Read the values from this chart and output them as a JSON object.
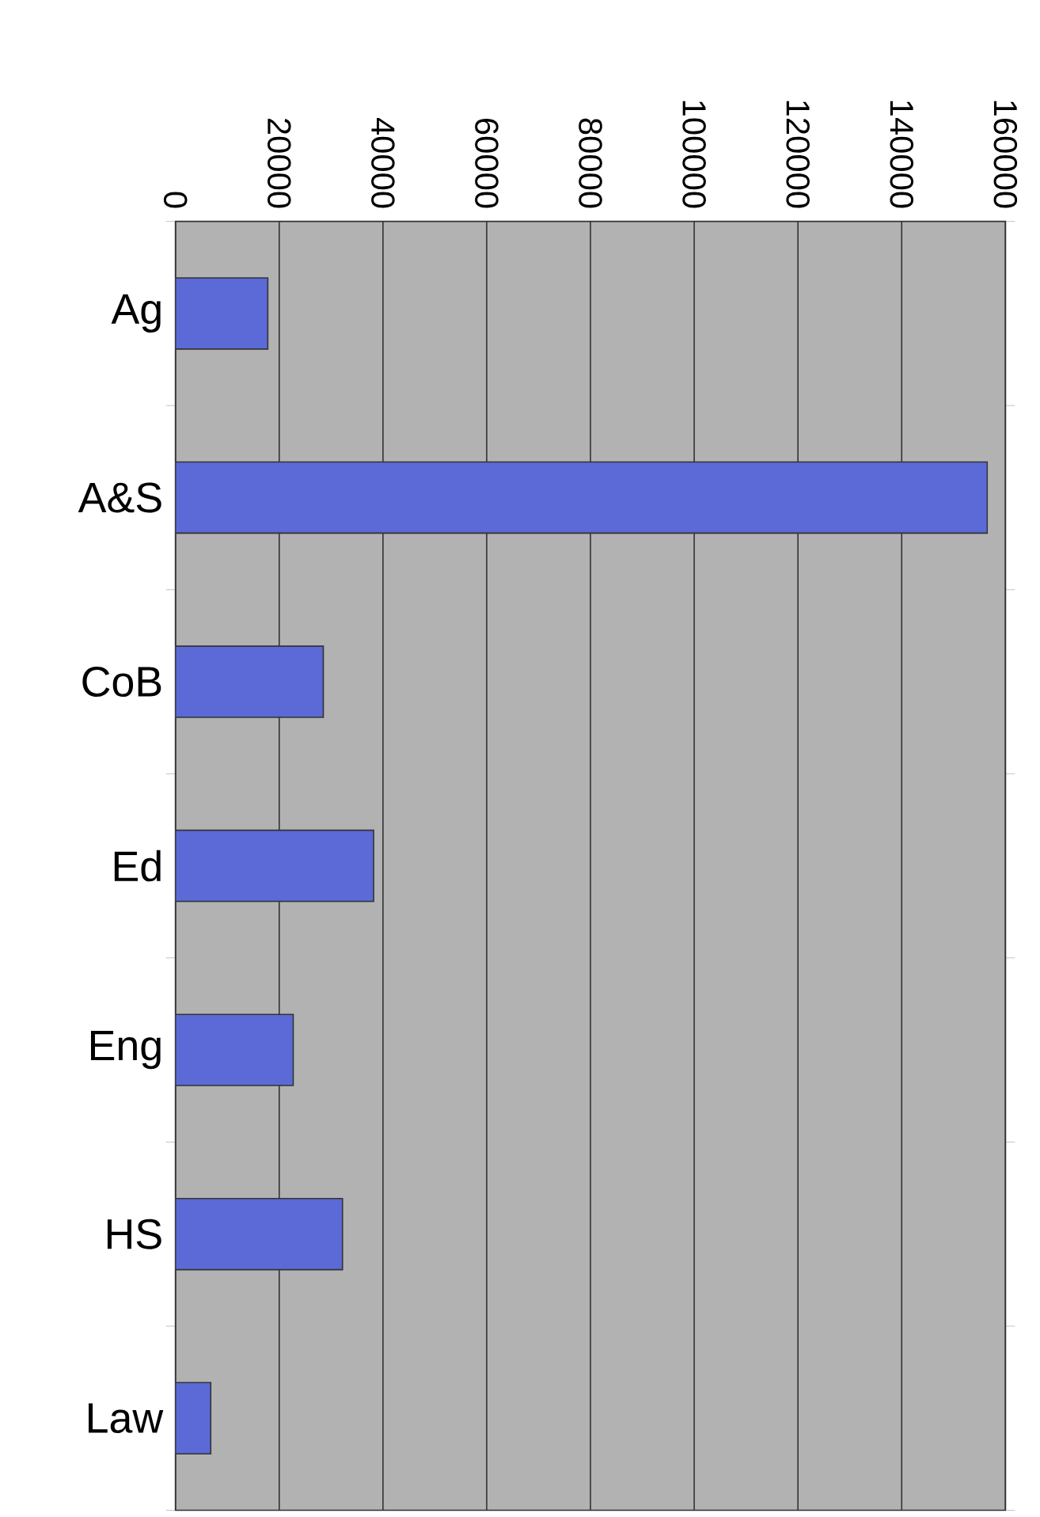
{
  "chart_data": {
    "type": "bar",
    "orientation": "horizontal",
    "categories": [
      "Ag",
      "A&S",
      "CoB",
      "Ed",
      "Eng",
      "HS",
      "Law"
    ],
    "values": [
      17800,
      156500,
      28500,
      38200,
      22700,
      32200,
      6800
    ],
    "color": "#5b6ad6",
    "xlim": [
      0,
      160000
    ],
    "xticks": [
      0,
      20000,
      40000,
      60000,
      80000,
      100000,
      120000,
      140000,
      160000
    ],
    "grid": "x"
  }
}
